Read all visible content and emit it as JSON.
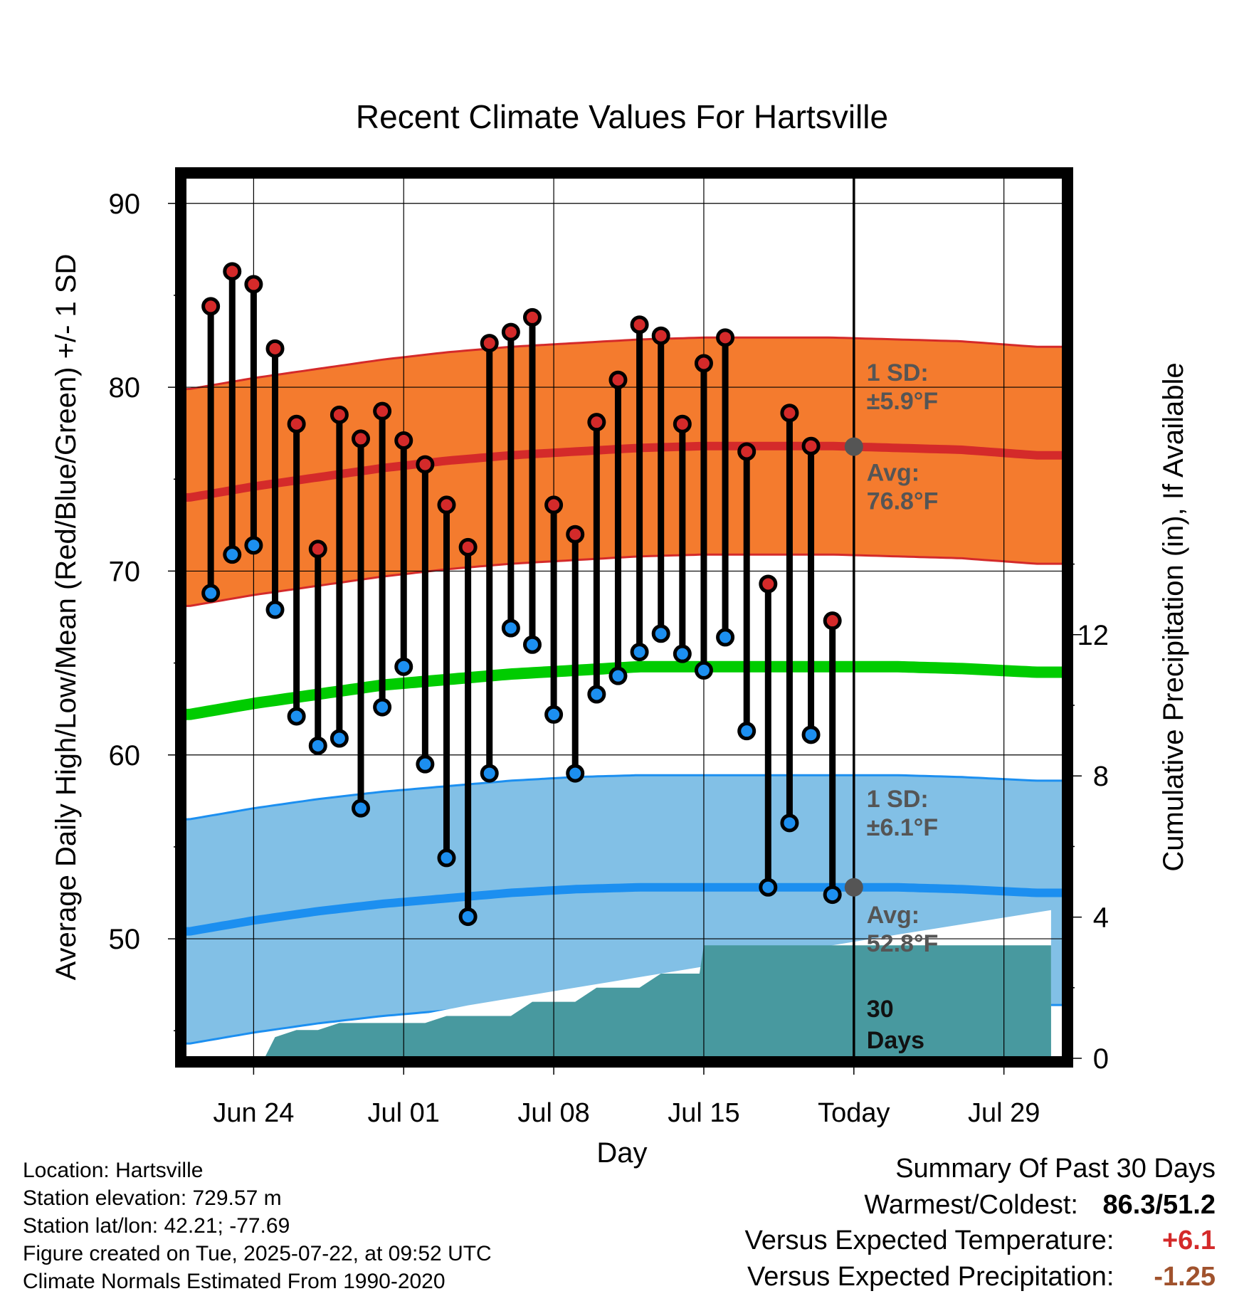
{
  "chart_data": {
    "type": "line",
    "title": "Recent Climate Values For Hartsville",
    "xlabel": "Day",
    "ylabel": "Average Daily High/Low/Mean (Red/Blue/Green) +/- 1 SD",
    "y2label": "Cumulative Precipitation (in), If Available",
    "x_ticks": [
      "Jun 24",
      "Jul 01",
      "Jul 08",
      "Jul 15",
      "Today",
      "Jul 29"
    ],
    "x_tick_days": [
      0,
      7,
      14,
      21,
      28,
      35
    ],
    "xlim": [
      -3.2,
      37.8
    ],
    "ylim": [
      43.5,
      91.5
    ],
    "y_ticks": [
      50,
      60,
      70,
      80,
      90
    ],
    "y2_ticks": [
      0,
      4,
      8,
      12
    ],
    "y2lim": [
      0,
      25
    ],
    "today_day": 28,
    "grid": true,
    "daily_days": [
      -2,
      -1,
      0,
      1,
      2,
      3,
      4,
      5,
      6,
      7,
      8,
      9,
      10,
      11,
      12,
      13,
      14,
      15,
      16,
      17,
      18,
      19,
      20,
      21,
      22,
      23,
      24,
      25,
      26,
      27
    ],
    "daily_high": [
      84.4,
      86.3,
      85.6,
      82.1,
      78.0,
      71.2,
      78.5,
      77.2,
      78.7,
      77.1,
      75.8,
      73.6,
      71.3,
      82.4,
      83.0,
      83.8,
      73.6,
      72.0,
      78.1,
      80.4,
      83.4,
      82.8,
      78.0,
      81.3,
      82.7,
      76.5,
      69.3,
      78.6,
      76.8,
      67.3
    ],
    "daily_low": [
      68.8,
      70.9,
      71.4,
      67.9,
      62.1,
      60.5,
      60.9,
      57.1,
      62.6,
      64.8,
      59.5,
      54.4,
      51.2,
      59.0,
      66.9,
      66.0,
      62.2,
      59.0,
      63.3,
      64.3,
      65.6,
      66.6,
      65.5,
      64.6,
      66.4,
      61.3,
      52.8,
      56.3,
      61.1,
      52.4
    ],
    "normal_days": [
      -3,
      0,
      3,
      6,
      9,
      12,
      15,
      18,
      21,
      24,
      27,
      30,
      33,
      36.5
    ],
    "normal_high": [
      74.0,
      74.6,
      75.1,
      75.6,
      76.0,
      76.3,
      76.5,
      76.7,
      76.8,
      76.8,
      76.8,
      76.7,
      76.6,
      76.3
    ],
    "normal_low": [
      50.4,
      51.0,
      51.5,
      51.9,
      52.2,
      52.5,
      52.7,
      52.8,
      52.8,
      52.8,
      52.8,
      52.8,
      52.7,
      52.5
    ],
    "normal_mean": [
      62.2,
      62.8,
      63.3,
      63.8,
      64.1,
      64.4,
      64.6,
      64.8,
      64.8,
      64.8,
      64.8,
      64.8,
      64.7,
      64.5
    ],
    "high_sd": 5.9,
    "low_sd": 6.1,
    "precip_days": [
      -3,
      -2,
      -1,
      0,
      0.5,
      1,
      2,
      3,
      4,
      5,
      6,
      7,
      8,
      9,
      10,
      11,
      12,
      13,
      14,
      15,
      16,
      17,
      18,
      19,
      20,
      20.8,
      21,
      22,
      23,
      24,
      25,
      26,
      27,
      28,
      29,
      30,
      31,
      32,
      33,
      34,
      35,
      36,
      37.2
    ],
    "precip_cum": [
      0,
      0,
      0,
      0,
      0,
      0.6,
      0.8,
      0.8,
      1.0,
      1.0,
      1.0,
      1.0,
      1.0,
      1.2,
      1.2,
      1.2,
      1.2,
      1.6,
      1.6,
      1.6,
      2.0,
      2.0,
      2.0,
      2.4,
      2.4,
      2.4,
      3.2,
      3.2,
      3.2,
      3.2,
      3.2,
      3.2,
      3.2,
      3.2,
      3.2,
      3.2,
      3.2,
      3.2,
      3.2,
      3.2,
      3.2,
      3.2,
      3.2
    ],
    "normal_precip_days": [
      -3,
      0,
      5,
      10,
      15,
      20,
      25,
      30,
      37.2
    ],
    "normal_precip": [
      0,
      0.4,
      0.9,
      1.5,
      2.0,
      2.5,
      3.0,
      3.5,
      4.2
    ],
    "annotations": {
      "high_sd_label": "1 SD:",
      "high_sd_value": "±5.9°F",
      "high_avg_label": "Avg:",
      "high_avg_value": "76.8°F",
      "low_sd_label": "1 SD:",
      "low_sd_value": "±6.1°F",
      "low_avg_label": "Avg:",
      "low_avg_value": "52.8°F",
      "window_num": "30",
      "window_unit": "Days"
    },
    "colors": {
      "high_band": "#f47b2e",
      "high_line": "#d42a2a",
      "low_band": "#82c0e6",
      "low_line": "#1c8ff0",
      "mean_line": "#00cc00",
      "precip": "#48999f",
      "annotation": "#555555",
      "high_dot": "#d42a2a",
      "low_dot": "#1c8ff0"
    }
  },
  "info": {
    "location": "Location: Hartsville",
    "elevation": "Station elevation: 729.57 m",
    "latlon": "Station lat/lon: 42.21; -77.69",
    "created": "Figure created on Tue, 2025-07-22, at 09:52 UTC",
    "normals": "Climate Normals Estimated From 1990-2020"
  },
  "summary": {
    "heading": "Summary Of Past 30 Days",
    "warm_cold_label": "Warmest/Coldest:",
    "warm_cold_value": "86.3/51.2",
    "temp_label": "Versus Expected Temperature:",
    "temp_value": "+6.1",
    "temp_color": "#d42a2a",
    "precip_label": "Versus Expected Precipitation:",
    "precip_value": "-1.25",
    "precip_color": "#a0522d"
  }
}
